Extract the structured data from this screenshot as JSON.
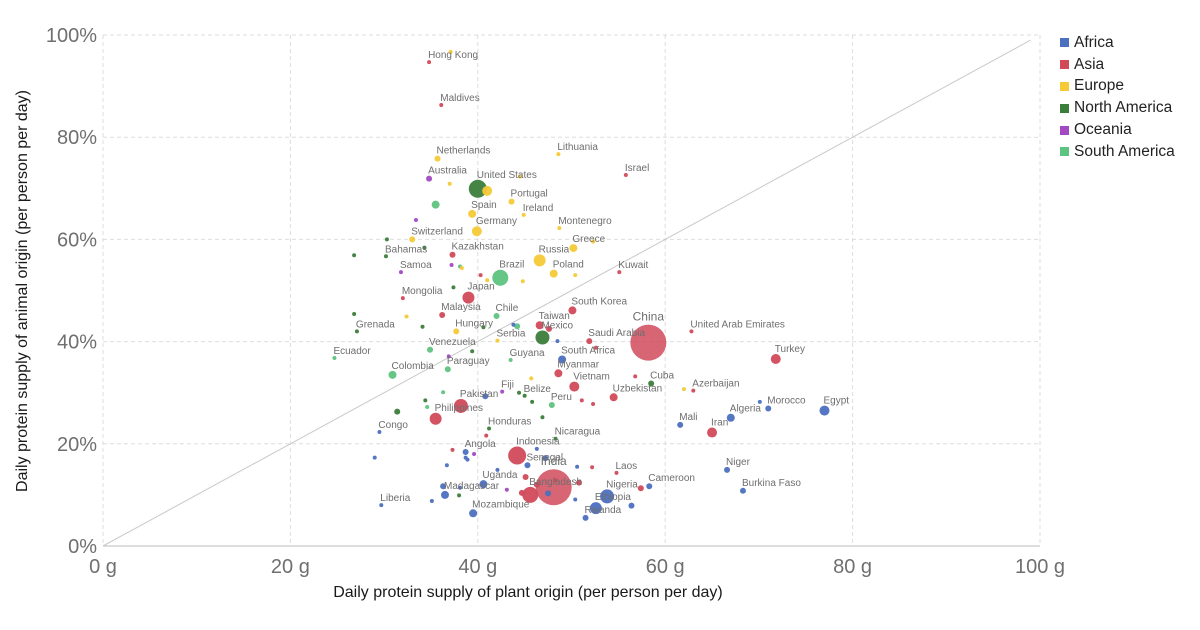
{
  "chart_data": {
    "type": "scatter",
    "xlabel": "Daily protein supply of plant origin (per person per day)",
    "ylabel": "Daily protein supply of animal origin (per person per day)",
    "xlim": [
      0,
      100
    ],
    "ylim": [
      0,
      100
    ],
    "x_ticks": [
      "0 g",
      "20 g",
      "40 g",
      "60 g",
      "80 g",
      "100 g"
    ],
    "y_ticks": [
      "0%",
      "20%",
      "40%",
      "60%",
      "80%",
      "100%"
    ],
    "grid": true,
    "legend_position": "top-right",
    "reference_line": "y = x",
    "legend": [
      {
        "name": "Africa",
        "color": "#4c6fbf"
      },
      {
        "name": "Asia",
        "color": "#d14a5a"
      },
      {
        "name": "Europe",
        "color": "#f6c936"
      },
      {
        "name": "North America",
        "color": "#3b7d3b"
      },
      {
        "name": "Oceania",
        "color": "#a349c4"
      },
      {
        "name": "South America",
        "color": "#5dc380"
      }
    ],
    "points": [
      {
        "label": "Hong Kong",
        "x": 34.8,
        "y": 94.7,
        "region": "Asia",
        "size": 2
      },
      {
        "label": "Maldives",
        "x": 36.1,
        "y": 86.3,
        "region": "Asia",
        "size": 2
      },
      {
        "label": "Netherlands",
        "x": 35.7,
        "y": 75.8,
        "region": "Europe",
        "size": 3
      },
      {
        "label": "Lithuania",
        "x": 48.6,
        "y": 76.7,
        "region": "Europe",
        "size": 2
      },
      {
        "label": "Israel",
        "x": 55.8,
        "y": 72.6,
        "region": "Asia",
        "size": 2
      },
      {
        "label": "Australia",
        "x": 34.8,
        "y": 71.9,
        "region": "Oceania",
        "size": 3
      },
      {
        "label": "United States",
        "x": 40.0,
        "y": 69.9,
        "region": "North America",
        "size": 9
      },
      {
        "label": "Portugal",
        "x": 43.6,
        "y": 67.4,
        "region": "Europe",
        "size": 3
      },
      {
        "label": "Spain",
        "x": 39.4,
        "y": 65.0,
        "region": "Europe",
        "size": 4
      },
      {
        "label": "Ireland",
        "x": 44.9,
        "y": 64.8,
        "region": "Europe",
        "size": 2
      },
      {
        "label": "Montenegro",
        "x": 48.7,
        "y": 62.2,
        "region": "Europe",
        "size": 2
      },
      {
        "label": "Germany",
        "x": 39.9,
        "y": 61.6,
        "region": "Europe",
        "size": 5
      },
      {
        "label": "Switzerland",
        "x": 33.0,
        "y": 60.0,
        "region": "Europe",
        "size": 3
      },
      {
        "label": "Greece",
        "x": 50.2,
        "y": 58.3,
        "region": "Europe",
        "size": 4
      },
      {
        "label": "Bahamas",
        "x": 30.2,
        "y": 56.7,
        "region": "North America",
        "size": 2
      },
      {
        "label": "Kazakhstan",
        "x": 37.3,
        "y": 57.0,
        "region": "Asia",
        "size": 3
      },
      {
        "label": "Russia",
        "x": 46.6,
        "y": 55.9,
        "region": "Europe",
        "size": 6
      },
      {
        "label": "Kuwait",
        "x": 55.1,
        "y": 53.6,
        "region": "Asia",
        "size": 2
      },
      {
        "label": "Samoa",
        "x": 31.8,
        "y": 53.6,
        "region": "Oceania",
        "size": 2
      },
      {
        "label": "Brazil",
        "x": 42.4,
        "y": 52.5,
        "region": "South America",
        "size": 8
      },
      {
        "label": "Poland",
        "x": 48.1,
        "y": 53.3,
        "region": "Europe",
        "size": 4
      },
      {
        "label": "Mongolia",
        "x": 32.0,
        "y": 48.5,
        "region": "Asia",
        "size": 2
      },
      {
        "label": "Japan",
        "x": 39.0,
        "y": 48.6,
        "region": "Asia",
        "size": 6
      },
      {
        "label": "Malaysia",
        "x": 36.2,
        "y": 45.2,
        "region": "Asia",
        "size": 3
      },
      {
        "label": "Chile",
        "x": 42.0,
        "y": 45.0,
        "region": "South America",
        "size": 3
      },
      {
        "label": "South Korea",
        "x": 50.1,
        "y": 46.1,
        "region": "Asia",
        "size": 4
      },
      {
        "label": "Grenada",
        "x": 27.1,
        "y": 42.0,
        "region": "North America",
        "size": 2
      },
      {
        "label": "Hungary",
        "x": 37.7,
        "y": 42.0,
        "region": "Europe",
        "size": 3
      },
      {
        "label": "Taiwan",
        "x": 46.6,
        "y": 43.2,
        "region": "Asia",
        "size": 4
      },
      {
        "label": "Mexico",
        "x": 46.9,
        "y": 40.8,
        "region": "North America",
        "size": 7
      },
      {
        "label": "Saudi Arabia",
        "x": 51.9,
        "y": 40.1,
        "region": "Asia",
        "size": 3
      },
      {
        "label": "China",
        "x": 58.2,
        "y": 39.8,
        "region": "Asia",
        "size": 18
      },
      {
        "label": "United Arab Emirates",
        "x": 62.8,
        "y": 42.0,
        "region": "Asia",
        "size": 2
      },
      {
        "label": "Venezuela",
        "x": 34.9,
        "y": 38.4,
        "region": "South America",
        "size": 3
      },
      {
        "label": "Ecuador",
        "x": 24.7,
        "y": 36.8,
        "region": "South America",
        "size": 2
      },
      {
        "label": "Serbia",
        "x": 42.1,
        "y": 40.2,
        "region": "Europe",
        "size": 2
      },
      {
        "label": "South Africa",
        "x": 49.0,
        "y": 36.5,
        "region": "Africa",
        "size": 4
      },
      {
        "label": "Turkey",
        "x": 71.8,
        "y": 36.6,
        "region": "Asia",
        "size": 5
      },
      {
        "label": "Guyana",
        "x": 43.5,
        "y": 36.4,
        "region": "South America",
        "size": 2
      },
      {
        "label": "Paraguay",
        "x": 36.8,
        "y": 34.6,
        "region": "South America",
        "size": 3
      },
      {
        "label": "Colombia",
        "x": 30.9,
        "y": 33.5,
        "region": "South America",
        "size": 4
      },
      {
        "label": "Myanmar",
        "x": 48.6,
        "y": 33.8,
        "region": "Asia",
        "size": 4
      },
      {
        "label": "Cuba",
        "x": 58.5,
        "y": 31.8,
        "region": "North America",
        "size": 3
      },
      {
        "label": "Vietnam",
        "x": 50.3,
        "y": 31.2,
        "region": "Asia",
        "size": 5
      },
      {
        "label": "Fiji",
        "x": 42.6,
        "y": 30.2,
        "region": "Oceania",
        "size": 2
      },
      {
        "label": "Azerbaijan",
        "x": 63.0,
        "y": 30.4,
        "region": "Asia",
        "size": 2
      },
      {
        "label": "Uzbekistan",
        "x": 54.5,
        "y": 29.1,
        "region": "Asia",
        "size": 4
      },
      {
        "label": "Belize",
        "x": 45.0,
        "y": 29.4,
        "region": "North America",
        "size": 2
      },
      {
        "label": "Pakistan",
        "x": 38.2,
        "y": 27.4,
        "region": "Asia",
        "size": 7
      },
      {
        "label": "Peru",
        "x": 47.9,
        "y": 27.6,
        "region": "South America",
        "size": 3
      },
      {
        "label": "Morocco",
        "x": 71.0,
        "y": 26.9,
        "region": "Africa",
        "size": 3
      },
      {
        "label": "Egypt",
        "x": 77.0,
        "y": 26.5,
        "region": "Africa",
        "size": 5
      },
      {
        "label": "Philippines",
        "x": 35.5,
        "y": 24.9,
        "region": "Asia",
        "size": 6
      },
      {
        "label": "Algeria",
        "x": 67.0,
        "y": 25.1,
        "region": "Africa",
        "size": 4
      },
      {
        "label": "Mali",
        "x": 61.6,
        "y": 23.7,
        "region": "Africa",
        "size": 3
      },
      {
        "label": "Iran",
        "x": 65.0,
        "y": 22.2,
        "region": "Asia",
        "size": 5
      },
      {
        "label": "Honduras",
        "x": 41.2,
        "y": 23.0,
        "region": "North America",
        "size": 2
      },
      {
        "label": "Congo",
        "x": 29.5,
        "y": 22.3,
        "region": "Africa",
        "size": 2
      },
      {
        "label": "Nicaragua",
        "x": 48.3,
        "y": 21.0,
        "region": "North America",
        "size": 2
      },
      {
        "label": "Angola",
        "x": 38.7,
        "y": 18.4,
        "region": "Africa",
        "size": 3
      },
      {
        "label": "Indonesia",
        "x": 44.2,
        "y": 17.7,
        "region": "Asia",
        "size": 9
      },
      {
        "label": "Senegal",
        "x": 45.3,
        "y": 15.8,
        "region": "Africa",
        "size": 3
      },
      {
        "label": "India",
        "x": 48.1,
        "y": 11.5,
        "region": "Asia",
        "size": 18
      },
      {
        "label": "Laos",
        "x": 54.8,
        "y": 14.3,
        "region": "Asia",
        "size": 2
      },
      {
        "label": "Niger",
        "x": 66.6,
        "y": 14.9,
        "region": "Africa",
        "size": 3
      },
      {
        "label": "Uganda",
        "x": 40.6,
        "y": 12.1,
        "region": "Africa",
        "size": 4
      },
      {
        "label": "Cameroon",
        "x": 58.3,
        "y": 11.7,
        "region": "Africa",
        "size": 3
      },
      {
        "label": "Bangladesh",
        "x": 45.6,
        "y": 10.0,
        "region": "Asia",
        "size": 8
      },
      {
        "label": "Madagascar",
        "x": 36.5,
        "y": 10.0,
        "region": "Africa",
        "size": 4
      },
      {
        "label": "Nigeria",
        "x": 53.8,
        "y": 9.7,
        "region": "Africa",
        "size": 7
      },
      {
        "label": "Burkina Faso",
        "x": 68.3,
        "y": 10.8,
        "region": "Africa",
        "size": 3
      },
      {
        "label": "Ethiopia",
        "x": 52.6,
        "y": 7.4,
        "region": "Africa",
        "size": 6
      },
      {
        "label": "Liberia",
        "x": 29.7,
        "y": 8.0,
        "region": "Africa",
        "size": 2
      },
      {
        "label": "Mozambique",
        "x": 39.5,
        "y": 6.4,
        "region": "Africa",
        "size": 4
      },
      {
        "label": "Rwanda",
        "x": 51.5,
        "y": 5.5,
        "region": "Africa",
        "size": 3
      },
      {
        "label": "",
        "x": 37.1,
        "y": 96.7,
        "region": "Europe",
        "size": 2
      },
      {
        "label": "",
        "x": 44.5,
        "y": 72.3,
        "region": "Europe",
        "size": 2
      },
      {
        "label": "",
        "x": 37.0,
        "y": 70.9,
        "region": "Europe",
        "size": 2
      },
      {
        "label": "",
        "x": 41.0,
        "y": 69.5,
        "region": "Europe",
        "size": 5
      },
      {
        "label": "",
        "x": 35.5,
        "y": 66.8,
        "region": "South America",
        "size": 4
      },
      {
        "label": "",
        "x": 33.4,
        "y": 63.8,
        "region": "Oceania",
        "size": 2
      },
      {
        "label": "",
        "x": 30.3,
        "y": 60.0,
        "region": "North America",
        "size": 2
      },
      {
        "label": "",
        "x": 34.3,
        "y": 58.4,
        "region": "North America",
        "size": 2
      },
      {
        "label": "",
        "x": 26.8,
        "y": 56.9,
        "region": "North America",
        "size": 2
      },
      {
        "label": "",
        "x": 52.3,
        "y": 59.6,
        "region": "Europe",
        "size": 2
      },
      {
        "label": "",
        "x": 37.2,
        "y": 55.0,
        "region": "Oceania",
        "size": 2
      },
      {
        "label": "",
        "x": 38.1,
        "y": 54.7,
        "region": "South America",
        "size": 2
      },
      {
        "label": "",
        "x": 38.3,
        "y": 54.4,
        "region": "Europe",
        "size": 2
      },
      {
        "label": "",
        "x": 40.3,
        "y": 53.0,
        "region": "Asia",
        "size": 2
      },
      {
        "label": "",
        "x": 41.0,
        "y": 52.0,
        "region": "Europe",
        "size": 2
      },
      {
        "label": "",
        "x": 44.8,
        "y": 51.8,
        "region": "Europe",
        "size": 2
      },
      {
        "label": "",
        "x": 50.4,
        "y": 53.0,
        "region": "Europe",
        "size": 2
      },
      {
        "label": "",
        "x": 37.4,
        "y": 50.6,
        "region": "North America",
        "size": 2
      },
      {
        "label": "",
        "x": 26.8,
        "y": 45.4,
        "region": "North America",
        "size": 2
      },
      {
        "label": "",
        "x": 40.6,
        "y": 42.8,
        "region": "North America",
        "size": 2
      },
      {
        "label": "",
        "x": 43.8,
        "y": 43.3,
        "region": "Africa",
        "size": 2
      },
      {
        "label": "",
        "x": 32.4,
        "y": 44.9,
        "region": "Europe",
        "size": 2
      },
      {
        "label": "",
        "x": 34.1,
        "y": 42.9,
        "region": "North America",
        "size": 2
      },
      {
        "label": "",
        "x": 44.2,
        "y": 43.0,
        "region": "South America",
        "size": 3
      },
      {
        "label": "",
        "x": 47.6,
        "y": 42.5,
        "region": "Asia",
        "size": 3
      },
      {
        "label": "",
        "x": 48.5,
        "y": 40.1,
        "region": "Africa",
        "size": 2
      },
      {
        "label": "",
        "x": 39.4,
        "y": 38.1,
        "region": "North America",
        "size": 2
      },
      {
        "label": "",
        "x": 36.9,
        "y": 37.1,
        "region": "Oceania",
        "size": 2
      },
      {
        "label": "",
        "x": 52.6,
        "y": 38.8,
        "region": "Asia",
        "size": 2
      },
      {
        "label": "",
        "x": 56.8,
        "y": 33.2,
        "region": "Asia",
        "size": 2
      },
      {
        "label": "",
        "x": 45.7,
        "y": 32.8,
        "region": "Europe",
        "size": 2
      },
      {
        "label": "",
        "x": 62.0,
        "y": 30.7,
        "region": "Europe",
        "size": 2
      },
      {
        "label": "",
        "x": 36.3,
        "y": 30.1,
        "region": "South America",
        "size": 2
      },
      {
        "label": "",
        "x": 44.4,
        "y": 30.0,
        "region": "North America",
        "size": 2
      },
      {
        "label": "",
        "x": 40.8,
        "y": 29.3,
        "region": "Africa",
        "size": 3
      },
      {
        "label": "",
        "x": 34.4,
        "y": 28.5,
        "region": "North America",
        "size": 2
      },
      {
        "label": "",
        "x": 45.8,
        "y": 28.2,
        "region": "North America",
        "size": 2
      },
      {
        "label": "",
        "x": 51.1,
        "y": 28.5,
        "region": "Asia",
        "size": 2
      },
      {
        "label": "",
        "x": 52.3,
        "y": 27.8,
        "region": "Asia",
        "size": 2
      },
      {
        "label": "",
        "x": 70.1,
        "y": 28.2,
        "region": "Africa",
        "size": 2
      },
      {
        "label": "",
        "x": 31.4,
        "y": 26.3,
        "region": "North America",
        "size": 3
      },
      {
        "label": "",
        "x": 34.6,
        "y": 27.2,
        "region": "South America",
        "size": 2
      },
      {
        "label": "",
        "x": 46.9,
        "y": 25.2,
        "region": "North America",
        "size": 2
      },
      {
        "label": "",
        "x": 40.9,
        "y": 21.6,
        "region": "Asia",
        "size": 2
      },
      {
        "label": "",
        "x": 37.3,
        "y": 18.8,
        "region": "Asia",
        "size": 2
      },
      {
        "label": "",
        "x": 38.7,
        "y": 17.3,
        "region": "Africa",
        "size": 2
      },
      {
        "label": "",
        "x": 39.6,
        "y": 18.0,
        "region": "Oceania",
        "size": 2
      },
      {
        "label": "",
        "x": 46.3,
        "y": 19.0,
        "region": "Africa",
        "size": 2
      },
      {
        "label": "",
        "x": 29.0,
        "y": 17.3,
        "region": "Africa",
        "size": 2
      },
      {
        "label": "",
        "x": 36.7,
        "y": 15.8,
        "region": "Africa",
        "size": 2
      },
      {
        "label": "",
        "x": 38.9,
        "y": 16.9,
        "region": "Africa",
        "size": 2
      },
      {
        "label": "",
        "x": 42.1,
        "y": 14.9,
        "region": "Africa",
        "size": 2
      },
      {
        "label": "",
        "x": 45.1,
        "y": 13.5,
        "region": "Asia",
        "size": 3
      },
      {
        "label": "",
        "x": 47.2,
        "y": 17.2,
        "region": "Africa",
        "size": 3
      },
      {
        "label": "",
        "x": 50.6,
        "y": 15.5,
        "region": "Africa",
        "size": 2
      },
      {
        "label": "",
        "x": 52.2,
        "y": 15.4,
        "region": "Asia",
        "size": 2
      },
      {
        "label": "",
        "x": 50.8,
        "y": 12.4,
        "region": "Asia",
        "size": 3
      },
      {
        "label": "",
        "x": 48.3,
        "y": 12.9,
        "region": "Asia",
        "size": 2
      },
      {
        "label": "",
        "x": 36.3,
        "y": 11.7,
        "region": "Africa",
        "size": 3
      },
      {
        "label": "",
        "x": 38.1,
        "y": 11.4,
        "region": "Africa",
        "size": 2
      },
      {
        "label": "",
        "x": 43.1,
        "y": 11.0,
        "region": "Oceania",
        "size": 2
      },
      {
        "label": "",
        "x": 44.7,
        "y": 10.4,
        "region": "Asia",
        "size": 3
      },
      {
        "label": "",
        "x": 46.3,
        "y": 12.0,
        "region": "Asia",
        "size": 3
      },
      {
        "label": "",
        "x": 47.5,
        "y": 10.3,
        "region": "Africa",
        "size": 3
      },
      {
        "label": "",
        "x": 50.4,
        "y": 9.1,
        "region": "Africa",
        "size": 2
      },
      {
        "label": "",
        "x": 57.4,
        "y": 11.3,
        "region": "Asia",
        "size": 3
      },
      {
        "label": "",
        "x": 38.0,
        "y": 9.9,
        "region": "North America",
        "size": 2
      },
      {
        "label": "",
        "x": 35.1,
        "y": 8.8,
        "region": "Africa",
        "size": 2
      },
      {
        "label": "",
        "x": 56.4,
        "y": 7.9,
        "region": "Africa",
        "size": 3
      }
    ]
  }
}
